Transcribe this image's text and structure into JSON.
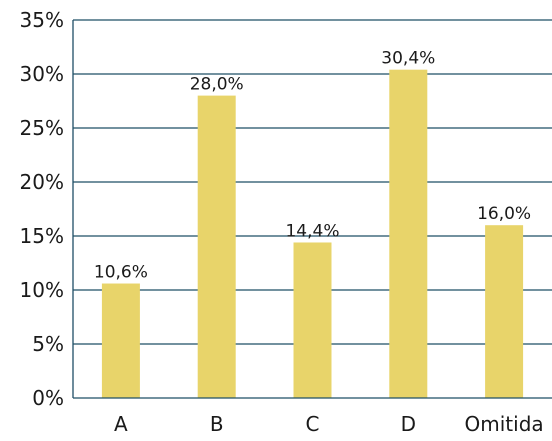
{
  "chart_data": {
    "type": "bar",
    "categories": [
      "A",
      "B",
      "C",
      "D",
      "Omitida"
    ],
    "values": [
      10.6,
      28.0,
      14.4,
      30.4,
      16.0
    ],
    "value_labels": [
      "10,6%",
      "28,0%",
      "14,4%",
      "30,4%",
      "16,0%"
    ],
    "y_ticks": [
      0,
      5,
      10,
      15,
      20,
      25,
      30,
      35
    ],
    "y_tick_labels": [
      "0%",
      "5%",
      "10%",
      "15%",
      "20%",
      "25%",
      "30%",
      "35%"
    ],
    "ylim": [
      0,
      35
    ],
    "grid": true,
    "legend": "none",
    "colors": {
      "bar": "#e8d46a",
      "grid": "#1f4f66",
      "axis": "#1f4f66",
      "text": "#1a1a1a"
    }
  }
}
